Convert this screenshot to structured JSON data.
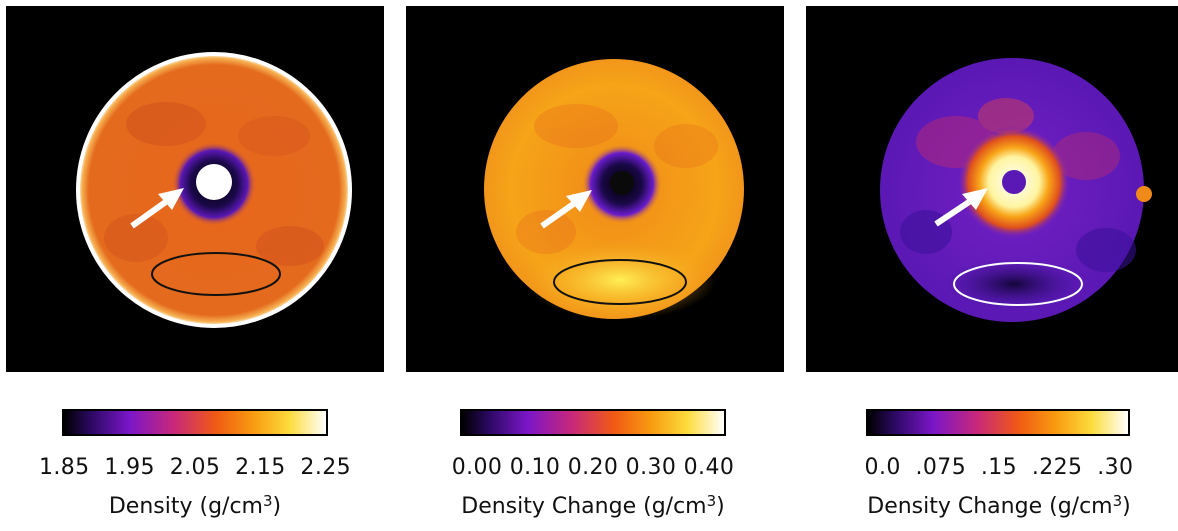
{
  "panels": [
    {
      "tick_labels": "1.85  1.95  2.05  2.15  2.25",
      "label_prefix": "Density (g/cm",
      "label_exponent": "3",
      "label_suffix": ")"
    },
    {
      "tick_labels": "0.00 0.10 0.20 0.30 0.40",
      "label_prefix": "Density Change (g/cm",
      "label_exponent": "3",
      "label_suffix": ")"
    },
    {
      "tick_labels": "0.0  .075  .15  .225  .30",
      "label_prefix": "Density Change (g/cm",
      "label_exponent": "3",
      "label_suffix": ")"
    }
  ],
  "colors": {
    "background": "#000000",
    "colormap": [
      "#000000",
      "#2a0860",
      "#7a16c8",
      "#c8287a",
      "#f05a14",
      "#f89a10",
      "#fcdc3c",
      "#ffffff"
    ]
  },
  "icons": [
    "arrow-icon",
    "region-ellipse"
  ]
}
